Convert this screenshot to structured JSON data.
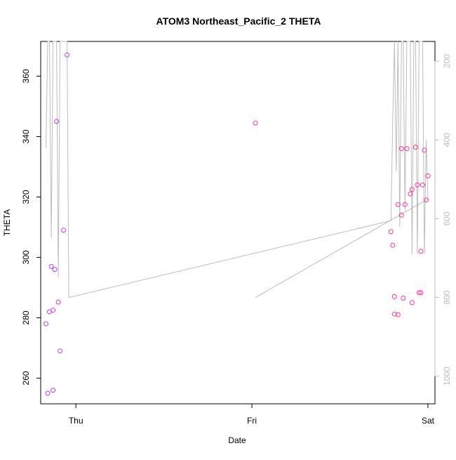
{
  "chart_data": {
    "type": "scatter",
    "title": "ATOM3 Northeast_Pacific_2 THETA",
    "xlabel": "Date",
    "ylabel": "THETA",
    "x_ticks": [
      "Thu",
      "Fri",
      "Sat"
    ],
    "y_ticks": [
      260,
      280,
      300,
      320,
      340,
      360
    ],
    "y2_ticks": [
      200,
      400,
      600,
      800,
      1000
    ],
    "xlim": [
      -0.2,
      2.04
    ],
    "ylim": [
      251.5,
      371.5
    ],
    "y2lim": [
      1070,
      150
    ],
    "grid": false,
    "colors": {
      "points_early": "#cc33ff",
      "points_late": "#ff3399",
      "secondary_line": "#bdbdbd",
      "axis": "#000000"
    },
    "series": [
      {
        "values": [
          {
            "x": -0.17,
            "y": 278.0
          },
          {
            "x": -0.16,
            "y": 255.0
          },
          {
            "x": -0.15,
            "y": 282.0
          },
          {
            "x": -0.14,
            "y": 297.0
          },
          {
            "x": -0.13,
            "y": 282.5
          },
          {
            "x": -0.13,
            "y": 256.0
          },
          {
            "x": -0.12,
            "y": 296.0
          },
          {
            "x": -0.11,
            "y": 345.0
          },
          {
            "x": -0.1,
            "y": 285.2
          },
          {
            "x": -0.09,
            "y": 269.0
          },
          {
            "x": -0.07,
            "y": 309.0
          },
          {
            "x": -0.05,
            "y": 367.0
          },
          {
            "x": 1.02,
            "y": 344.5
          },
          {
            "x": 1.79,
            "y": 308.5
          },
          {
            "x": 1.8,
            "y": 304.0
          },
          {
            "x": 1.81,
            "y": 281.2
          },
          {
            "x": 1.81,
            "y": 287.0
          },
          {
            "x": 1.83,
            "y": 281.0
          },
          {
            "x": 1.83,
            "y": 317.5
          },
          {
            "x": 1.85,
            "y": 336.0
          },
          {
            "x": 1.85,
            "y": 314.0
          },
          {
            "x": 1.86,
            "y": 286.5
          },
          {
            "x": 1.87,
            "y": 317.5
          },
          {
            "x": 1.88,
            "y": 336.0
          },
          {
            "x": 1.9,
            "y": 321.0
          },
          {
            "x": 1.91,
            "y": 285.0
          },
          {
            "x": 1.91,
            "y": 322.5
          },
          {
            "x": 1.93,
            "y": 336.5
          },
          {
            "x": 1.94,
            "y": 324.0
          },
          {
            "x": 1.95,
            "y": 288.3
          },
          {
            "x": 1.96,
            "y": 288.3
          },
          {
            "x": 1.96,
            "y": 302.0
          },
          {
            "x": 1.97,
            "y": 324.0
          },
          {
            "x": 1.98,
            "y": 335.5
          },
          {
            "x": 1.99,
            "y": 319.0
          },
          {
            "x": 2.0,
            "y": 327.0
          }
        ]
      },
      {
        "axis": "right",
        "values": [
          {
            "x": -0.17,
            "y": 420
          },
          {
            "x": -0.16,
            "y": 150
          },
          {
            "x": -0.15,
            "y": 150
          },
          {
            "x": -0.14,
            "y": 650
          },
          {
            "x": -0.13,
            "y": 150
          },
          {
            "x": -0.12,
            "y": 150
          },
          {
            "x": -0.11,
            "y": 150
          },
          {
            "x": -0.1,
            "y": 750
          },
          {
            "x": -0.09,
            "y": 150
          },
          {
            "x": -0.07,
            "y": 150
          },
          {
            "x": -0.05,
            "y": 150
          },
          {
            "x": -0.04,
            "y": 800
          },
          {
            "x": 1.79,
            "y": 605
          },
          {
            "x": 1.8,
            "y": 350
          },
          {
            "x": 1.81,
            "y": 150
          },
          {
            "x": 1.82,
            "y": 480
          },
          {
            "x": 1.83,
            "y": 150
          },
          {
            "x": 1.84,
            "y": 620
          },
          {
            "x": 1.85,
            "y": 150
          },
          {
            "x": 1.86,
            "y": 150
          },
          {
            "x": 1.87,
            "y": 580
          },
          {
            "x": 1.88,
            "y": 150
          },
          {
            "x": 1.9,
            "y": 150
          },
          {
            "x": 1.91,
            "y": 690
          },
          {
            "x": 1.92,
            "y": 150
          },
          {
            "x": 1.93,
            "y": 150
          },
          {
            "x": 1.94,
            "y": 690
          },
          {
            "x": 1.95,
            "y": 150
          },
          {
            "x": 1.96,
            "y": 150
          },
          {
            "x": 1.97,
            "y": 150
          },
          {
            "x": 1.98,
            "y": 690
          },
          {
            "x": 1.99,
            "y": 400
          },
          {
            "x": 2.0,
            "y": 550
          },
          {
            "x": 1.02,
            "y": 800
          }
        ]
      }
    ]
  }
}
